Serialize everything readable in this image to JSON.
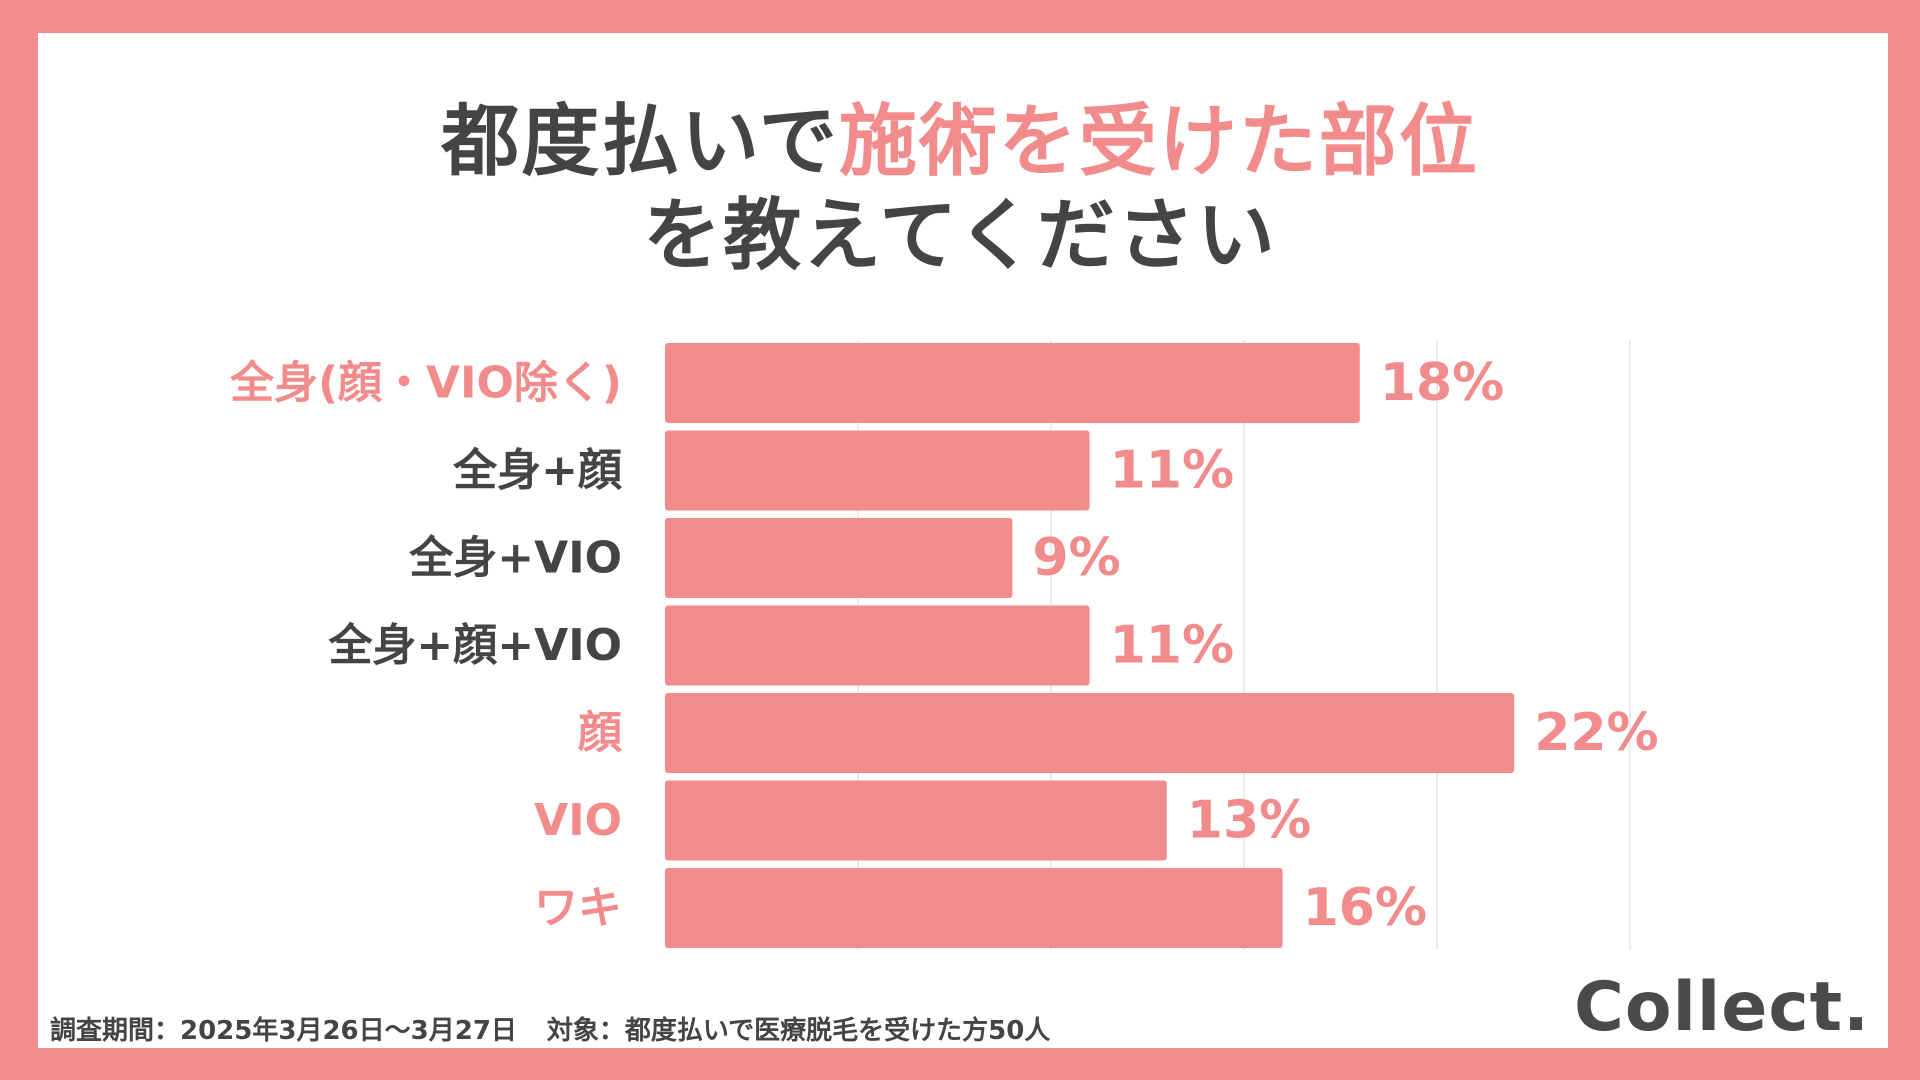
{
  "title": {
    "part1": "都度払いで",
    "part2_accent": "施術を受けた部位",
    "line2": "を教えてください"
  },
  "chart_data": {
    "type": "bar",
    "orientation": "horizontal",
    "categories": [
      "全身(顔・VIO除く)",
      "全身+顔",
      "全身+VIO",
      "全身+顔+VIO",
      "顔",
      "VIO",
      "ワキ"
    ],
    "values": [
      18,
      11,
      9,
      11,
      22,
      13,
      16
    ],
    "value_labels": [
      "18%",
      "11%",
      "9%",
      "11%",
      "22%",
      "13%",
      "16%"
    ],
    "highlighted": [
      true,
      false,
      false,
      false,
      true,
      true,
      true
    ],
    "xlim": [
      0,
      25
    ],
    "grid": true
  },
  "colors": {
    "accent": "#f28b8b",
    "bar": "#f28b8b",
    "text_dark": "#444444",
    "grid": "#e6e6e6"
  },
  "footnote": {
    "period": "調査期間：2025年3月26日〜3月27日",
    "target": "対象：都度払いで医療脱毛を受けた方50人"
  },
  "logo": "Collect."
}
